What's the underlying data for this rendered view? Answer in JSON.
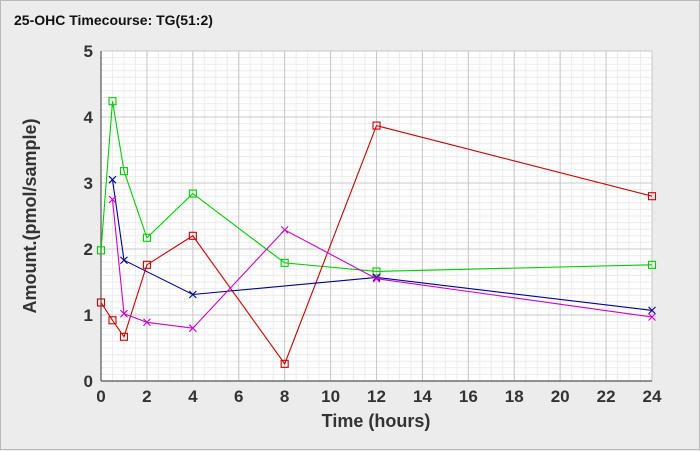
{
  "chart_data": {
    "type": "line",
    "title": "25-OHC Timecourse: TG(51:2)",
    "xlabel": "Time (hours)",
    "ylabel": "Amount.(pmol/sample)",
    "xlim": [
      0,
      24
    ],
    "ylim": [
      0,
      5
    ],
    "xticks": [
      0,
      2,
      4,
      6,
      8,
      10,
      12,
      14,
      16,
      18,
      20,
      22,
      24
    ],
    "yticks": [
      0,
      1,
      2,
      3,
      4,
      5
    ],
    "x_minor_step": 0.5,
    "y_minor_step": 0.1,
    "grid": true,
    "series": [
      {
        "color": "#00cc00",
        "marker": "square",
        "x": [
          0,
          0.5,
          1,
          2,
          4,
          8,
          12,
          24
        ],
        "y": [
          1.98,
          4.24,
          3.18,
          2.17,
          2.84,
          1.79,
          1.66,
          1.76
        ]
      },
      {
        "color": "#cc0000",
        "marker": "square",
        "x": [
          0,
          0.5,
          1,
          2,
          4,
          8,
          12,
          24
        ],
        "y": [
          1.19,
          0.92,
          0.67,
          1.76,
          2.2,
          0.26,
          3.87,
          2.8
        ]
      },
      {
        "color": "#000099",
        "marker": "x",
        "x": [
          0.5,
          1,
          4,
          12,
          24
        ],
        "y": [
          3.05,
          1.83,
          1.31,
          1.57,
          1.07
        ]
      },
      {
        "color": "#cc00cc",
        "marker": "x",
        "x": [
          0.5,
          1,
          2,
          4,
          8,
          12,
          24
        ],
        "y": [
          2.75,
          1.02,
          0.89,
          0.8,
          2.29,
          1.55,
          0.97
        ]
      }
    ]
  }
}
